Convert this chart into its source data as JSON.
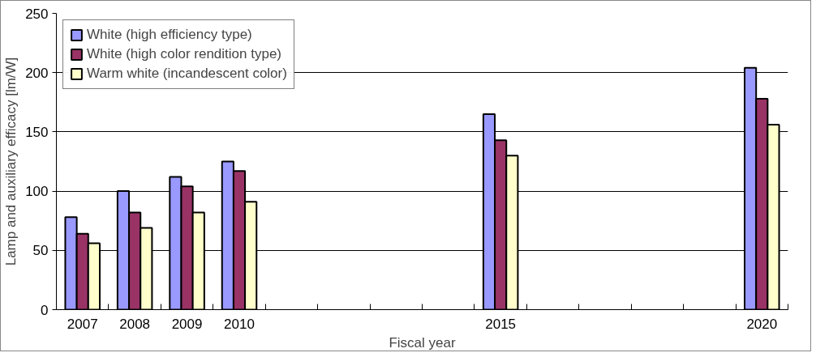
{
  "chart_data": {
    "type": "bar",
    "xlabel": "Fiscal year",
    "ylabel": "Lamp and auxiliary efficacy [lm/W]",
    "categories": [
      "2007",
      "2008",
      "2009",
      "2010",
      null,
      null,
      null,
      null,
      "2015",
      null,
      null,
      null,
      null,
      "2020"
    ],
    "series": [
      {
        "name": "White (high efficiency type)",
        "color": "#9999ff",
        "values": [
          78,
          100,
          112,
          125,
          null,
          null,
          null,
          null,
          165,
          null,
          null,
          null,
          null,
          204
        ]
      },
      {
        "name": "White (high color rendition type)",
        "color": "#993366",
        "values": [
          64,
          82,
          104,
          117,
          null,
          null,
          null,
          null,
          143,
          null,
          null,
          null,
          null,
          178
        ]
      },
      {
        "name": "Warm white (incandescent color)",
        "color": "#ffffcc",
        "values": [
          56,
          69,
          82,
          91,
          null,
          null,
          null,
          null,
          130,
          null,
          null,
          null,
          null,
          156
        ]
      }
    ],
    "ylim": [
      0,
      250
    ],
    "yticks": [
      0,
      50,
      100,
      150,
      200,
      250
    ],
    "grid": "y",
    "legend": "top left"
  }
}
